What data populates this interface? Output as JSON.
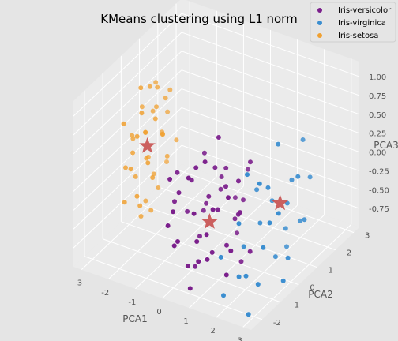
{
  "chart_data": {
    "type": "scatter",
    "title": "KMeans clustering using L1 norm",
    "axes": {
      "x": {
        "label": "PCA1",
        "ticks": [
          "-3",
          "-2",
          "-1",
          "0",
          "1",
          "2",
          "3"
        ],
        "lim": [
          -3.3,
          3.3
        ]
      },
      "y": {
        "label": "PCA2",
        "ticks": [
          "-2",
          "-1",
          "0",
          "1",
          "2",
          "3"
        ],
        "lim": [
          -2.6,
          3.3
        ]
      },
      "z": {
        "label": "PCA3",
        "ticks": [
          "1.00",
          "0.75",
          "0.50",
          "0.25",
          "0.00",
          "-0.25",
          "-0.50",
          "-0.75"
        ],
        "lim": [
          -1.0,
          1.2
        ]
      }
    },
    "grid": true,
    "legend_position": "top-right",
    "colors": {
      "versicolor": "#7b1f8c",
      "virginica": "#3b8ed0",
      "setosa": "#f0a030",
      "centroid": "#c8504f",
      "pane": "#ebebeb",
      "grid": "#ffffff",
      "background": "#e5e5e5"
    },
    "series": [
      {
        "name": "Iris-versicolor",
        "color": "#7b1f8c",
        "points": [
          [
            0.3,
            -1.2,
            0.45
          ],
          [
            0.6,
            -0.6,
            0.35
          ],
          [
            0.0,
            -1.0,
            0.2
          ],
          [
            -0.2,
            -1.4,
            0.1
          ],
          [
            0.5,
            -0.8,
            0.0
          ],
          [
            0.8,
            -0.3,
            0.3
          ],
          [
            0.2,
            -0.5,
            -0.2
          ],
          [
            0.9,
            -0.9,
            -0.1
          ],
          [
            1.0,
            -0.6,
            0.15
          ],
          [
            -0.3,
            -0.8,
            -0.3
          ],
          [
            0.6,
            -1.6,
            -0.4
          ],
          [
            1.2,
            -0.4,
            -0.3
          ],
          [
            0.4,
            0.0,
            -0.1
          ],
          [
            -0.1,
            -1.8,
            -0.5
          ],
          [
            0.9,
            -1.2,
            -0.6
          ],
          [
            1.3,
            -1.0,
            -0.5
          ],
          [
            0.2,
            -1.5,
            -0.8
          ],
          [
            1.1,
            0.2,
            -0.2
          ],
          [
            0.7,
            -1.9,
            0.05
          ],
          [
            1.4,
            -0.5,
            0.25
          ],
          [
            0.0,
            -0.3,
            0.4
          ],
          [
            -0.5,
            -1.2,
            -0.1
          ],
          [
            1.5,
            -1.3,
            -0.8
          ],
          [
            0.8,
            0.3,
            -0.7
          ],
          [
            0.3,
            -2.2,
            -0.3
          ],
          [
            1.2,
            -1.6,
            0.1
          ],
          [
            -0.2,
            -2.0,
            -0.2
          ],
          [
            1.0,
            -2.1,
            -0.5
          ],
          [
            0.5,
            -0.1,
            0.1
          ],
          [
            1.6,
            -0.8,
            -0.1
          ],
          [
            0.1,
            -0.7,
            -0.6
          ],
          [
            0.7,
            -1.3,
            0.6
          ],
          [
            1.3,
            -0.2,
            -0.9
          ],
          [
            -0.4,
            -1.6,
            0.3
          ],
          [
            0.9,
            -2.4,
            -0.8
          ],
          [
            1.8,
            -1.0,
            0.0
          ],
          [
            0.4,
            -2.6,
            0.2
          ],
          [
            1.5,
            0.0,
            0.4
          ],
          [
            0.6,
            0.5,
            -0.3
          ],
          [
            -0.6,
            -0.9,
            0.2
          ],
          [
            1.1,
            -1.8,
            -0.2
          ],
          [
            1.7,
            -1.5,
            0.3
          ],
          [
            0.2,
            -1.1,
            -0.9
          ],
          [
            1.4,
            -2.2,
            -0.4
          ],
          [
            0.8,
            -0.7,
            0.8
          ],
          [
            -0.1,
            -0.2,
            -0.4
          ],
          [
            1.9,
            -0.6,
            -0.6
          ],
          [
            0.5,
            -1.9,
            0.5
          ],
          [
            1.0,
            0.6,
            0.1
          ],
          [
            2.0,
            -1.8,
            -0.3
          ]
        ]
      },
      {
        "name": "Iris-virginica",
        "color": "#3b8ed0",
        "points": [
          [
            2.2,
            -1.2,
            0.6
          ],
          [
            2.5,
            -0.5,
            0.3
          ],
          [
            2.9,
            -1.0,
            0.0
          ],
          [
            2.0,
            -0.2,
            -0.3
          ],
          [
            3.0,
            -1.5,
            -0.2
          ],
          [
            1.8,
            -0.8,
            -0.5
          ],
          [
            2.6,
            0.4,
            -0.1
          ],
          [
            2.3,
            -1.8,
            0.1
          ],
          [
            3.1,
            -0.3,
            -0.6
          ],
          [
            1.6,
            0.2,
            0.0
          ],
          [
            2.8,
            0.8,
            -0.4
          ],
          [
            2.1,
            -1.5,
            -0.7
          ],
          [
            3.2,
            0.1,
            0.4
          ],
          [
            1.9,
            0.6,
            -0.2
          ],
          [
            2.4,
            -0.9,
            -0.9
          ],
          [
            2.7,
            -2.0,
            -0.5
          ],
          [
            3.3,
            -1.1,
            0.2
          ],
          [
            2.2,
            0.9,
            -0.6
          ],
          [
            2.0,
            -2.2,
            -0.8
          ],
          [
            2.9,
            1.2,
            0.1
          ],
          [
            3.0,
            -2.3,
            -0.9
          ],
          [
            2.5,
            1.4,
            0.5
          ],
          [
            1.7,
            -1.9,
            -0.4
          ],
          [
            2.6,
            -0.1,
            0.8
          ],
          [
            2.3,
            0.2,
            -0.8
          ],
          [
            3.1,
            0.6,
            -0.3
          ],
          [
            2.8,
            -1.4,
            0.6
          ],
          [
            2.1,
            1.1,
            -0.9
          ],
          [
            2.7,
            0.5,
            0.2
          ],
          [
            3.2,
            -0.7,
            -0.8
          ]
        ]
      },
      {
        "name": "Iris-setosa",
        "color": "#f0a030",
        "points": [
          [
            -2.6,
            0.3,
            0.2
          ],
          [
            -2.8,
            -0.1,
            0.0
          ],
          [
            -2.4,
            0.6,
            0.5
          ],
          [
            -2.7,
            0.5,
            -0.2
          ],
          [
            -2.5,
            -0.3,
            0.3
          ],
          [
            -2.9,
            0.2,
            -0.4
          ],
          [
            -2.3,
            0.8,
            0.1
          ],
          [
            -2.6,
            -0.5,
            -0.1
          ],
          [
            -3.0,
            0.7,
            0.4
          ],
          [
            -2.2,
            0.1,
            -0.3
          ],
          [
            -2.8,
            1.0,
            0.3
          ],
          [
            -2.4,
            -0.2,
            0.6
          ],
          [
            -2.7,
            0.9,
            -0.5
          ],
          [
            -2.5,
            0.4,
            0.8
          ],
          [
            -2.9,
            -0.4,
            -0.6
          ],
          [
            -2.1,
            0.5,
            0.2
          ],
          [
            -2.6,
            1.2,
            0.0
          ],
          [
            -2.3,
            -0.6,
            -0.4
          ],
          [
            -3.1,
            0.3,
            0.1
          ],
          [
            -2.8,
            0.6,
            -0.8
          ],
          [
            -2.4,
            1.1,
            0.5
          ],
          [
            -2.6,
            0.0,
            -0.7
          ],
          [
            -2.2,
            0.9,
            -0.2
          ],
          [
            -2.9,
            1.3,
            0.6
          ],
          [
            -2.5,
            -0.1,
            0.9
          ],
          [
            -2.7,
            0.2,
            -0.9
          ],
          [
            -2.3,
            0.4,
            0.4
          ],
          [
            -3.0,
            -0.2,
            -0.2
          ],
          [
            -2.4,
            0.7,
            -0.6
          ],
          [
            -2.6,
            1.5,
            0.2
          ],
          [
            -2.8,
            -0.6,
            0.5
          ],
          [
            -2.2,
            1.4,
            -0.1
          ],
          [
            -2.5,
            0.8,
            0.7
          ],
          [
            -2.9,
            0.9,
            -0.3
          ],
          [
            -2.1,
            -0.3,
            0.0
          ],
          [
            -2.7,
            1.6,
            -0.5
          ],
          [
            -2.4,
            0.0,
            0.3
          ],
          [
            -2.6,
            0.6,
            -0.9
          ],
          [
            -3.2,
            0.5,
            0.0
          ],
          [
            -2.3,
            1.2,
            0.6
          ]
        ]
      }
    ],
    "centroids": [
      [
        -2.6,
        0.4,
        0.0
      ],
      [
        0.6,
        -0.9,
        -0.3
      ],
      [
        2.4,
        0.3,
        -0.1
      ]
    ]
  }
}
